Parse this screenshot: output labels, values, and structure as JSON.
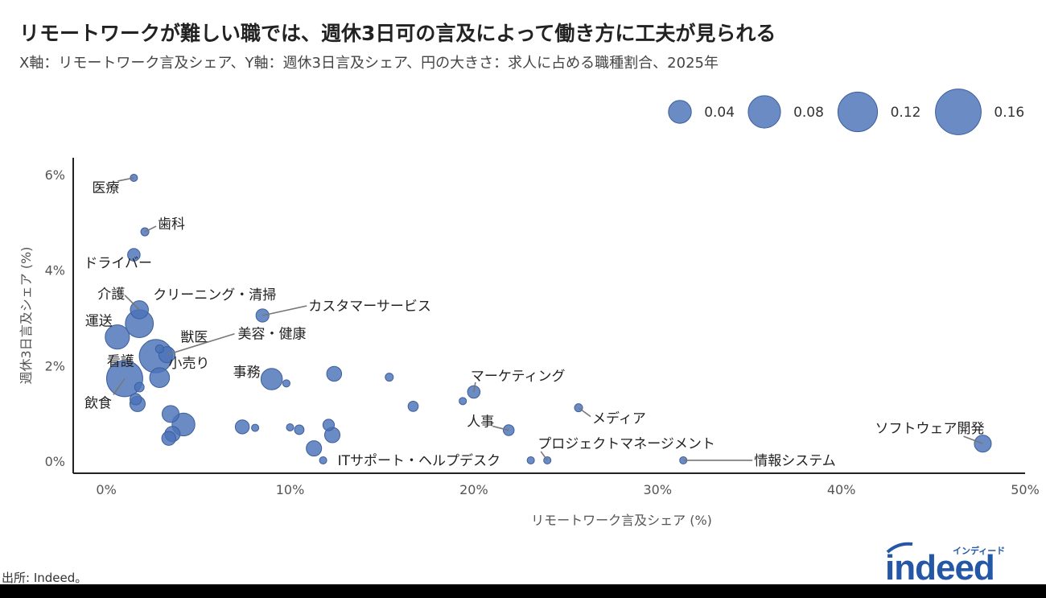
{
  "title": "リモートワークが難しい職では、週休3日可の言及によって働き方に工夫が見られる",
  "subtitle": "X軸：リモートワーク言及シェア、Y軸：週休3日言及シェア、円の大きさ：求人に占める職種割合、2025年",
  "source": "出所: Indeed。",
  "logo": {
    "kana": "インディード",
    "word": "indeed"
  },
  "colors": {
    "bubble": "#4a72b8",
    "bubble_stroke": "#3b5e9c",
    "label_line": "#777777",
    "logo": "#2557a7"
  },
  "chart_data": {
    "type": "scatter",
    "xlabel": "リモートワーク言及シェア (%)",
    "ylabel": "週休3日言及シェア (%)",
    "xlim": [
      -1.8,
      50
    ],
    "ylim": [
      -0.25,
      6.35
    ],
    "xticks": [
      0,
      10,
      20,
      30,
      40,
      50
    ],
    "xtick_labels": [
      "0%",
      "10%",
      "20%",
      "30%",
      "40%",
      "50%"
    ],
    "yticks": [
      0,
      2,
      4,
      6
    ],
    "ytick_labels": [
      "0%",
      "2%",
      "4%",
      "6%"
    ],
    "grid": false,
    "size_legend": {
      "values": [
        0.04,
        0.08,
        0.12,
        0.16
      ],
      "labels": [
        "0.04",
        "0.08",
        "0.12",
        "0.16"
      ],
      "placement": "top-right"
    },
    "points": [
      {
        "name": "医療",
        "x": 1.5,
        "y": 5.93,
        "size": 0.002
      },
      {
        "name": "歯科",
        "x": 2.1,
        "y": 4.8,
        "size": 0.005
      },
      {
        "name": "ドライバー",
        "x": 1.5,
        "y": 4.32,
        "size": 0.012
      },
      {
        "name": "介護",
        "x": 1.8,
        "y": 3.17,
        "size": 0.025
      },
      {
        "name": "クリーニング・清掃",
        "x": 1.8,
        "y": 2.88,
        "size": 0.06
      },
      {
        "name": "カスタマーサービス",
        "x": 8.5,
        "y": 3.05,
        "size": 0.013
      },
      {
        "name": "運送",
        "x": 0.6,
        "y": 2.6,
        "size": 0.045
      },
      {
        "name": "獣医",
        "x": 2.9,
        "y": 2.35,
        "size": 0.005
      },
      {
        "name": "美容・健康",
        "x": 3.3,
        "y": 2.23,
        "size": 0.02
      },
      {
        "name": "看護",
        "x": 2.7,
        "y": 2.2,
        "size": 0.085
      },
      {
        "name": "小売り",
        "x": 2.9,
        "y": 1.75,
        "size": 0.03
      },
      {
        "name": "事務",
        "x": 9.0,
        "y": 1.72,
        "size": 0.035
      },
      {
        "name": "飲食",
        "x": 1.0,
        "y": 1.73,
        "size": 0.1
      },
      {
        "name": "マーケティング",
        "x": 20.0,
        "y": 1.45,
        "size": 0.012
      },
      {
        "name": "メディア",
        "x": 25.7,
        "y": 1.12,
        "size": 0.005
      },
      {
        "name": "人事",
        "x": 21.9,
        "y": 0.65,
        "size": 0.009
      },
      {
        "name": "ソフトウェア開発",
        "x": 47.7,
        "y": 0.37,
        "size": 0.022
      },
      {
        "name": "プロジェクトマネージメント",
        "x": 24.0,
        "y": 0.02,
        "size": 0.002
      },
      {
        "name": "ITサポート・ヘルプデスク",
        "x": 23.1,
        "y": 0.02,
        "size": 0.002
      },
      {
        "name": "情報システム",
        "x": 31.4,
        "y": 0.02,
        "size": 0.002
      },
      {
        "name": "",
        "x": 12.4,
        "y": 1.83,
        "size": 0.017
      },
      {
        "name": "",
        "x": 15.4,
        "y": 1.76,
        "size": 0.005
      },
      {
        "name": "",
        "x": 9.8,
        "y": 1.63,
        "size": 0.002
      },
      {
        "name": "",
        "x": 16.7,
        "y": 1.15,
        "size": 0.008
      },
      {
        "name": "",
        "x": 19.4,
        "y": 1.26,
        "size": 0.004
      },
      {
        "name": "",
        "x": 1.8,
        "y": 1.55,
        "size": 0.007
      },
      {
        "name": "",
        "x": 1.6,
        "y": 1.3,
        "size": 0.01
      },
      {
        "name": "",
        "x": 1.7,
        "y": 1.2,
        "size": 0.018
      },
      {
        "name": "",
        "x": 3.5,
        "y": 0.99,
        "size": 0.022
      },
      {
        "name": "",
        "x": 4.2,
        "y": 0.77,
        "size": 0.04
      },
      {
        "name": "",
        "x": 3.6,
        "y": 0.57,
        "size": 0.018
      },
      {
        "name": "",
        "x": 3.4,
        "y": 0.48,
        "size": 0.015
      },
      {
        "name": "",
        "x": 7.4,
        "y": 0.72,
        "size": 0.015
      },
      {
        "name": "",
        "x": 8.1,
        "y": 0.7,
        "size": 0.004
      },
      {
        "name": "",
        "x": 10.0,
        "y": 0.71,
        "size": 0.004
      },
      {
        "name": "",
        "x": 10.5,
        "y": 0.66,
        "size": 0.007
      },
      {
        "name": "",
        "x": 12.1,
        "y": 0.76,
        "size": 0.01
      },
      {
        "name": "",
        "x": 12.3,
        "y": 0.55,
        "size": 0.018
      },
      {
        "name": "",
        "x": 11.3,
        "y": 0.27,
        "size": 0.018
      },
      {
        "name": "",
        "x": 11.8,
        "y": 0.02,
        "size": 0.002
      }
    ]
  }
}
